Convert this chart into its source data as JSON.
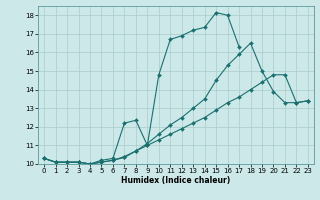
{
  "title": "",
  "xlabel": "Humidex (Indice chaleur)",
  "xlim": [
    -0.5,
    23.5
  ],
  "ylim": [
    10,
    18.5
  ],
  "xticks": [
    0,
    1,
    2,
    3,
    4,
    5,
    6,
    7,
    8,
    9,
    10,
    11,
    12,
    13,
    14,
    15,
    16,
    17,
    18,
    19,
    20,
    21,
    22,
    23
  ],
  "yticks": [
    10,
    11,
    12,
    13,
    14,
    15,
    16,
    17,
    18
  ],
  "background_color": "#cce8e8",
  "grid_color": "#aacccc",
  "line_color": "#1a7070",
  "lines": [
    {
      "x": [
        0,
        1,
        2,
        3,
        4,
        5,
        6,
        7,
        8,
        9,
        10,
        11,
        12,
        13,
        14,
        15,
        16,
        17
      ],
      "y": [
        10.3,
        10.1,
        10.1,
        10.1,
        10.0,
        10.2,
        10.3,
        12.2,
        12.35,
        11.0,
        14.8,
        16.7,
        16.9,
        17.2,
        17.35,
        18.15,
        18.0,
        16.3
      ]
    },
    {
      "x": [
        0,
        1,
        2,
        3,
        4,
        5,
        6,
        7,
        8,
        9,
        10,
        11,
        12,
        13,
        14,
        15,
        16,
        17,
        18,
        19,
        20,
        21,
        22,
        23
      ],
      "y": [
        10.3,
        10.1,
        10.1,
        10.1,
        10.0,
        10.1,
        10.2,
        10.35,
        10.7,
        11.1,
        11.6,
        12.1,
        12.5,
        13.0,
        13.5,
        14.5,
        15.3,
        15.9,
        16.5,
        15.0,
        13.9,
        13.3,
        13.3,
        13.4
      ]
    },
    {
      "x": [
        0,
        1,
        2,
        3,
        4,
        5,
        6,
        7,
        8,
        9,
        10,
        11,
        12,
        13,
        14,
        15,
        16,
        17,
        18,
        19,
        20,
        21,
        22,
        23
      ],
      "y": [
        10.3,
        10.1,
        10.1,
        10.1,
        10.0,
        10.1,
        10.2,
        10.4,
        10.7,
        11.0,
        11.3,
        11.6,
        11.9,
        12.2,
        12.5,
        12.9,
        13.3,
        13.6,
        14.0,
        14.4,
        14.8,
        14.8,
        13.3,
        13.4
      ]
    }
  ]
}
